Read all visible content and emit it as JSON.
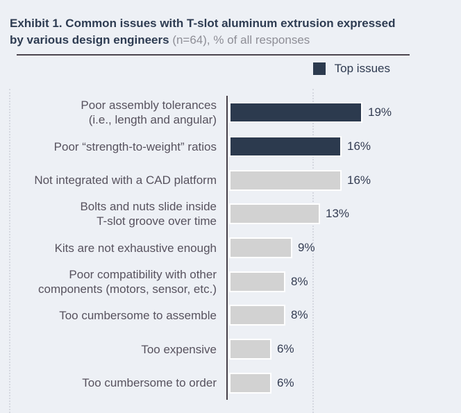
{
  "header": {
    "title_bold": "Exhibit 1. Common issues with T-slot aluminum extrusion expressed by various design engineers",
    "title_note": "(n=64), % of all responses"
  },
  "legend": {
    "items": [
      {
        "label": "Top issues",
        "color": "#2c3a4e"
      }
    ]
  },
  "chart_data": {
    "type": "bar",
    "orientation": "horizontal",
    "title": "Exhibit 1. Common issues with T-slot aluminum extrusion expressed by various design engineers (n=64), % of all responses",
    "unit": "%",
    "xlim": [
      0,
      20
    ],
    "grid": false,
    "legend_position": "top-right",
    "colors": {
      "top_issue": "#2c3a4e",
      "regular": "#d2d2d2",
      "background": "#edf0f5"
    },
    "categories": [
      "Poor assembly tolerances (i.e., length and angular)",
      "Poor “strength-to-weight” ratios",
      "Not integrated with a CAD platform",
      "Bolts and nuts slide inside T-slot groove over time",
      "Kits are not exhaustive enough",
      "Poor compatibility with other components (motors, sensor, etc.)",
      "Too cumbersome to assemble",
      "Too expensive",
      "Too cumbersome to order"
    ],
    "values": [
      19,
      16,
      16,
      13,
      9,
      8,
      8,
      6,
      6
    ],
    "bars": [
      {
        "lines": [
          "Poor assembly tolerances",
          "(i.e., length and angular)"
        ],
        "value": 19,
        "display": "19%",
        "top_issue": true
      },
      {
        "lines": [
          "Poor “strength-to-weight” ratios"
        ],
        "value": 16,
        "display": "16%",
        "top_issue": true
      },
      {
        "lines": [
          "Not integrated with a CAD platform"
        ],
        "value": 16,
        "display": "16%",
        "top_issue": false
      },
      {
        "lines": [
          "Bolts and nuts slide inside",
          "T-slot groove over time"
        ],
        "value": 13,
        "display": "13%",
        "top_issue": false
      },
      {
        "lines": [
          "Kits are not exhaustive enough"
        ],
        "value": 9,
        "display": "9%",
        "top_issue": false
      },
      {
        "lines": [
          "Poor compatibility with other",
          "components (motors, sensor, etc.)"
        ],
        "value": 8,
        "display": "8%",
        "top_issue": false
      },
      {
        "lines": [
          "Too cumbersome to assemble"
        ],
        "value": 8,
        "display": "8%",
        "top_issue": false
      },
      {
        "lines": [
          "Too expensive"
        ],
        "value": 6,
        "display": "6%",
        "top_issue": false
      },
      {
        "lines": [
          "Too cumbersome to order"
        ],
        "value": 6,
        "display": "6%",
        "top_issue": false
      }
    ]
  }
}
